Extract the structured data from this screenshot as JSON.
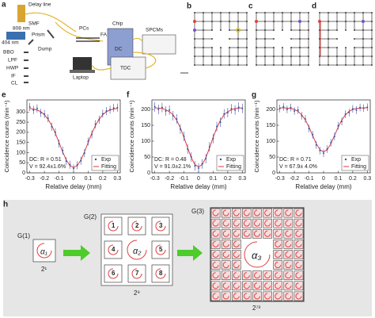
{
  "panels": [
    "a",
    "b",
    "c",
    "d",
    "h"
  ],
  "setup": [
    "Delay line",
    "SMF",
    "808 nm",
    "Prism",
    "404 nm",
    "Dump",
    "BBO",
    "LPF",
    "HWP",
    "IF",
    "CL",
    "PCs",
    "FA",
    "Chip",
    "DC",
    "SPCMs",
    "TDC",
    "Laptop"
  ],
  "chart_data": [
    {
      "type": "line",
      "panel": "e",
      "x": [
        -0.3,
        -0.275,
        -0.25,
        -0.225,
        -0.2,
        -0.175,
        -0.15,
        -0.125,
        -0.1,
        -0.075,
        -0.05,
        -0.025,
        0,
        0.025,
        0.05,
        0.075,
        0.1,
        0.125,
        0.15,
        0.175,
        0.2,
        0.225,
        0.25,
        0.275,
        0.3
      ],
      "series": [
        {
          "name": "Exp",
          "color": "#3a4fa0",
          "values": [
            325,
            310,
            318,
            296,
            290,
            270,
            228,
            200,
            145,
            110,
            58,
            40,
            22,
            38,
            60,
            98,
            155,
            190,
            240,
            262,
            292,
            305,
            312,
            320,
            322
          ],
          "errors": [
            20,
            20,
            20,
            20,
            20,
            20,
            20,
            20,
            20,
            20,
            20,
            20,
            20,
            20,
            20,
            20,
            20,
            20,
            20,
            20,
            20,
            20,
            20,
            20,
            20
          ]
        },
        {
          "name": "Fitting",
          "color": "#e0393e",
          "values": [
            318,
            315,
            310,
            302,
            287,
            265,
            234,
            195,
            150,
            104,
            63,
            36,
            26,
            36,
            63,
            104,
            150,
            195,
            234,
            265,
            287,
            302,
            310,
            315,
            318
          ]
        }
      ],
      "xlabel": "Relative delay (mm)",
      "ylabel": "Coincidence counts (min⁻¹)",
      "annotations": [
        "DC: R = 0.51",
        "V = 92.4±1.6%"
      ],
      "xlim": [
        -0.32,
        0.32
      ],
      "ylim": [
        0,
        360
      ],
      "xticks": [
        -0.3,
        -0.2,
        -0.1,
        0,
        0.1,
        0.2,
        0.3
      ],
      "yticks": [
        0,
        50,
        100,
        150,
        200,
        250,
        300
      ]
    },
    {
      "type": "line",
      "panel": "f",
      "x": [
        -0.3,
        -0.275,
        -0.25,
        -0.225,
        -0.2,
        -0.175,
        -0.15,
        -0.125,
        -0.1,
        -0.075,
        -0.05,
        -0.025,
        0,
        0.025,
        0.05,
        0.075,
        0.1,
        0.125,
        0.15,
        0.175,
        0.2,
        0.225,
        0.25,
        0.275,
        0.3
      ],
      "series": [
        {
          "name": "Exp",
          "color": "#3a4fa0",
          "values": [
            208,
            200,
            206,
            195,
            198,
            180,
            170,
            138,
            115,
            75,
            50,
            22,
            15,
            28,
            45,
            82,
            108,
            146,
            160,
            186,
            190,
            202,
            198,
            207,
            203
          ],
          "errors": [
            15,
            15,
            15,
            15,
            15,
            15,
            15,
            15,
            15,
            15,
            15,
            15,
            15,
            15,
            15,
            15,
            15,
            15,
            15,
            15,
            15,
            15,
            15,
            15,
            15
          ]
        },
        {
          "name": "Fitting",
          "color": "#e0393e",
          "values": [
            205,
            204,
            203,
            199,
            193,
            183,
            166,
            142,
            112,
            79,
            48,
            26,
            19,
            26,
            48,
            79,
            112,
            142,
            166,
            183,
            193,
            199,
            203,
            204,
            205
          ]
        }
      ],
      "xlabel": "Relative delay (mm)",
      "ylabel": "Coincidence counts (min⁻¹)",
      "annotations": [
        "DC: R = 0.48",
        "V = 91.0±2.1%"
      ],
      "xlim": [
        -0.32,
        0.32
      ],
      "ylim": [
        0,
        230
      ],
      "xticks": [
        -0.3,
        -0.2,
        -0.1,
        0,
        0.1,
        0.2,
        0.3
      ],
      "yticks": [
        0,
        50,
        100,
        150,
        200
      ]
    },
    {
      "type": "line",
      "panel": "g",
      "x": [
        -0.3,
        -0.275,
        -0.25,
        -0.225,
        -0.2,
        -0.175,
        -0.15,
        -0.125,
        -0.1,
        -0.075,
        -0.05,
        -0.025,
        0,
        0.025,
        0.05,
        0.075,
        0.1,
        0.125,
        0.15,
        0.175,
        0.2,
        0.225,
        0.25,
        0.275,
        0.3
      ],
      "series": [
        {
          "name": "Exp",
          "color": "#3a4fa0",
          "values": [
            203,
            208,
            200,
            206,
            195,
            198,
            180,
            170,
            140,
            120,
            88,
            70,
            62,
            75,
            95,
            115,
            148,
            162,
            185,
            190,
            202,
            198,
            206,
            204,
            207
          ],
          "errors": [
            12,
            12,
            12,
            12,
            12,
            12,
            12,
            12,
            12,
            12,
            12,
            12,
            12,
            12,
            12,
            12,
            12,
            12,
            12,
            12,
            12,
            12,
            12,
            12,
            12
          ]
        },
        {
          "name": "Fitting",
          "color": "#e0393e",
          "values": [
            205,
            205,
            204,
            203,
            200,
            194,
            183,
            167,
            144,
            118,
            92,
            73,
            66,
            73,
            92,
            118,
            144,
            167,
            183,
            194,
            200,
            203,
            204,
            205,
            205
          ]
        }
      ],
      "xlabel": "Relative delay (mm)",
      "ylabel": "Coincidence counts (min⁻¹)",
      "annotations": [
        "DC: R = 0.71",
        "V = 67.9± 4.0%"
      ],
      "xlim": [
        -0.32,
        0.32
      ],
      "ylim": [
        0,
        230
      ],
      "xticks": [
        -0.3,
        -0.2,
        -0.1,
        0,
        0.1,
        0.2,
        0.3
      ],
      "yticks": [
        0,
        50,
        100,
        150,
        200
      ]
    }
  ],
  "lattice": {
    "g1": "G(1)",
    "a1": "α₁",
    "n1": "2¹",
    "g2": "G(2)",
    "a2": "α₂",
    "cells": [
      "1",
      "2",
      "3",
      "4",
      "5",
      "6",
      "7",
      "8"
    ],
    "n2": "2⁹",
    "g3": "G(3)",
    "a3": "α₃",
    "n3": "2⁷³"
  }
}
